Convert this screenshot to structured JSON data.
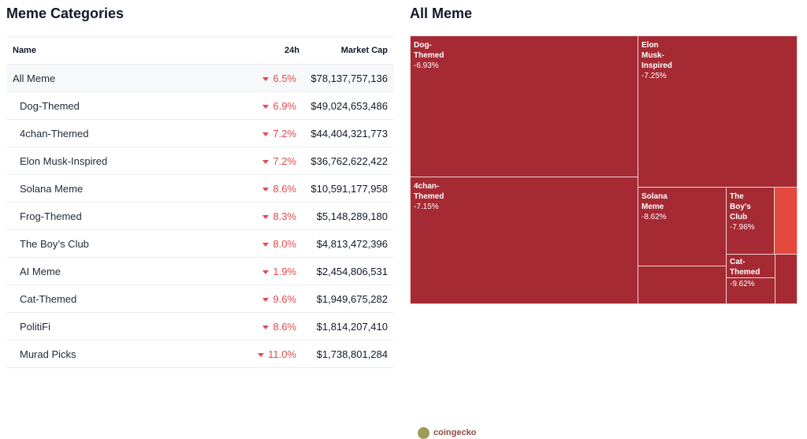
{
  "left": {
    "title": "Meme Categories",
    "headers": {
      "name": "Name",
      "change": "24h",
      "mcap": "Market Cap"
    },
    "rows": [
      {
        "name": "All Meme",
        "change": "6.5%",
        "mcap": "$78,137,757,136"
      },
      {
        "name": "Dog-Themed",
        "change": "6.9%",
        "mcap": "$49,024,653,486"
      },
      {
        "name": "4chan-Themed",
        "change": "7.2%",
        "mcap": "$44,404,321,773"
      },
      {
        "name": "Elon Musk-Inspired",
        "change": "7.2%",
        "mcap": "$36,762,622,422"
      },
      {
        "name": "Solana Meme",
        "change": "8.6%",
        "mcap": "$10,591,177,958"
      },
      {
        "name": "Frog-Themed",
        "change": "8.3%",
        "mcap": "$5,148,289,180"
      },
      {
        "name": "The Boy’s Club",
        "change": "8.0%",
        "mcap": "$4,813,472,396"
      },
      {
        "name": "AI Meme",
        "change": "1.9%",
        "mcap": "$2,454,806,531"
      },
      {
        "name": "Cat-Themed",
        "change": "9.6%",
        "mcap": "$1,949,675,282"
      },
      {
        "name": "PolitiFi",
        "change": "8.6%",
        "mcap": "$1,814,207,410"
      },
      {
        "name": "Murad Picks",
        "change": "11.0%",
        "mcap": "$1,738,801,284"
      }
    ]
  },
  "right": {
    "title": "All Meme",
    "watermark": "coingecko",
    "colors": {
      "down": "#a52a33",
      "light": "#e5483d"
    },
    "cells": [
      {
        "name": "Dog-Themed",
        "label": [
          "Dog-",
          "Themed"
        ],
        "change": "-6.93%"
      },
      {
        "name": "Elon Musk-Inspired",
        "label": [
          "Elon",
          "Musk-",
          "Inspired"
        ],
        "change": "-7.25%"
      },
      {
        "name": "4chan-Themed",
        "label": [
          "4chan-",
          "Themed"
        ],
        "change": "-7.15%"
      },
      {
        "name": "Solana Meme",
        "label": [
          "Solana",
          "Meme"
        ],
        "change": "-8.62%"
      },
      {
        "name": "The Boy's Club",
        "label": [
          "The",
          "Boy's",
          "Club"
        ],
        "change": "-7.96%"
      },
      {
        "name": "Cat-Themed",
        "label": [
          "Cat-",
          "Themed"
        ],
        "change": "-9.62%"
      }
    ]
  }
}
